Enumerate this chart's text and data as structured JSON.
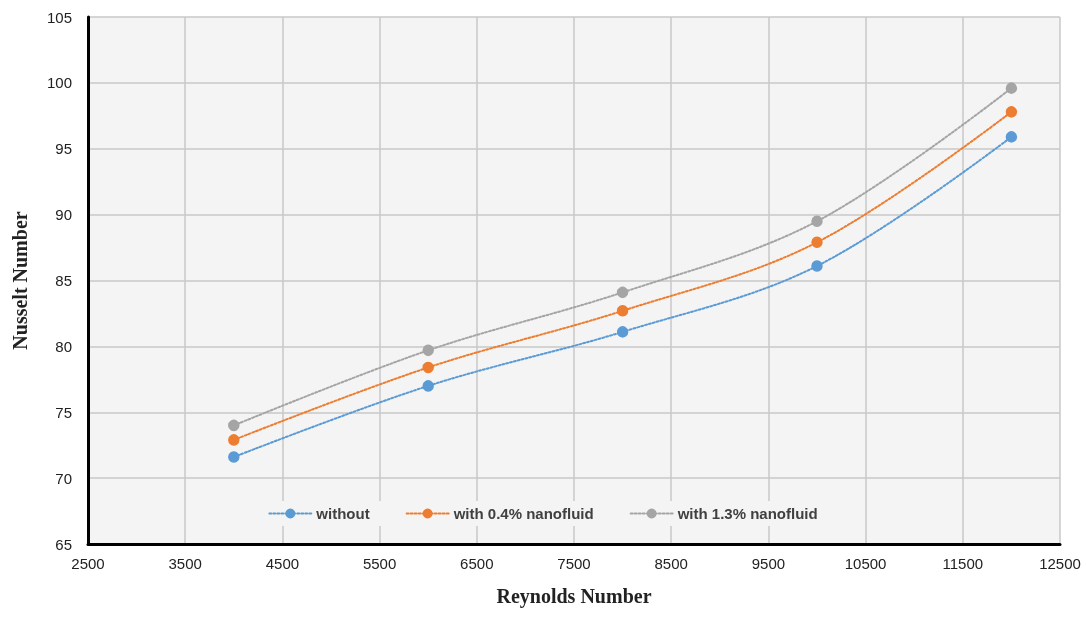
{
  "chart_data": {
    "type": "line",
    "xlabel": "Reynolds Number",
    "ylabel": "Nusselt Number",
    "x": [
      4000,
      6000,
      8000,
      10000,
      12000
    ],
    "series": [
      {
        "name": "without",
        "color": "#5b9bd5",
        "values": [
          71.6,
          77.0,
          81.1,
          86.1,
          95.9
        ]
      },
      {
        "name": "with 0.4% nanofluid",
        "color": "#ed7d31",
        "values": [
          72.9,
          78.4,
          82.7,
          87.9,
          97.8
        ]
      },
      {
        "name": "with 1.3% nanofluid",
        "color": "#a5a5a5",
        "values": [
          74.0,
          79.7,
          84.1,
          89.5,
          99.6
        ]
      }
    ],
    "xlim": [
      2500,
      12500
    ],
    "xticks": [
      2500,
      3500,
      4500,
      5500,
      6500,
      7500,
      8500,
      9500,
      10500,
      11500,
      12500
    ],
    "ylim": [
      65,
      105
    ],
    "yticks": [
      65,
      70,
      75,
      80,
      85,
      90,
      95,
      100,
      105
    ],
    "grid": true,
    "legend": "bottom",
    "marker": "circle",
    "line_style": "dotted"
  }
}
